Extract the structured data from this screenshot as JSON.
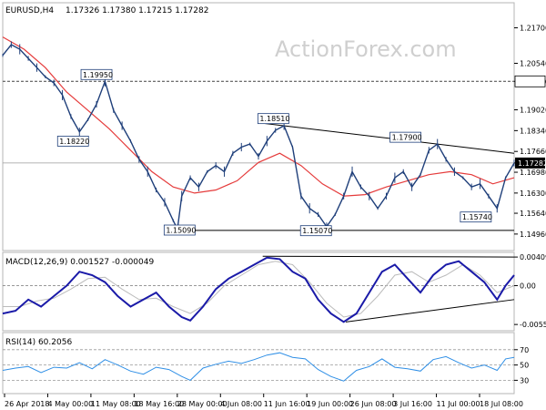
{
  "header": {
    "symbol": "EURUSD,H4",
    "ohlc": "1.17326 1.17380 1.17215 1.17282"
  },
  "watermark": "ActionForex.com",
  "colors": {
    "price": "#1f3f7a",
    "ma": "#e53b3b",
    "macd": "#1a1aa8",
    "signal": "#bbbbbb",
    "rsi": "#2f8fe6",
    "trend": "#000000",
    "current_marker": "#000000"
  },
  "chart_data": [
    {
      "type": "line",
      "name": "price",
      "x_ticks": [
        "26 Apr 2018",
        "4 May 00:00",
        "11 May 08:00",
        "18 May 16:00",
        "28 May 00:00",
        "4 Jun 08:00",
        "11 Jun 16:00",
        "19 Jun 00:00",
        "26 Jun 08:00",
        "3 Jul 16:00",
        "11 Jul 00:00",
        "18 Jul 08:00"
      ],
      "y_ticks": [
        "1.21700",
        "1.20540",
        "1.19950",
        "1.19020",
        "1.18340",
        "1.17660",
        "1.17282",
        "1.16980",
        "1.16300",
        "1.15640",
        "1.14960"
      ],
      "ylim": [
        1.1448,
        1.2246
      ],
      "horizontal_level": 1.1995,
      "current_value": 1.17282,
      "annotations": [
        {
          "label": "1.19950",
          "x": 44,
          "y": 1.1995
        },
        {
          "label": "1.18220",
          "x": 33,
          "y": 1.1822
        },
        {
          "label": "1.18510",
          "x": 127,
          "y": 1.1851
        },
        {
          "label": "1.15090",
          "x": 83,
          "y": 1.1509
        },
        {
          "label": "1.15070",
          "x": 147,
          "y": 1.1507
        },
        {
          "label": "1.17900",
          "x": 189,
          "y": 1.179
        },
        {
          "label": "1.15740",
          "x": 222,
          "y": 1.1574
        }
      ],
      "x": [
        0,
        4,
        8,
        12,
        16,
        20,
        24,
        28,
        32,
        36,
        40,
        44,
        48,
        52,
        56,
        60,
        64,
        68,
        72,
        76,
        80,
        82,
        84,
        88,
        92,
        96,
        100,
        104,
        108,
        112,
        116,
        120,
        124,
        128,
        132,
        136,
        140,
        144,
        148,
        152,
        156,
        160,
        164,
        168,
        172,
        176,
        180,
        184,
        188,
        192,
        196,
        200,
        204,
        208,
        212,
        216,
        220,
        224,
        228,
        232,
        236,
        240
      ],
      "values": [
        1.208,
        1.2115,
        1.21,
        1.207,
        1.204,
        1.201,
        1.199,
        1.195,
        1.188,
        1.183,
        1.187,
        1.192,
        1.1995,
        1.19,
        1.185,
        1.18,
        1.174,
        1.17,
        1.164,
        1.16,
        1.154,
        1.1512,
        1.162,
        1.168,
        1.165,
        1.17,
        1.172,
        1.17,
        1.176,
        1.178,
        1.179,
        1.175,
        1.18,
        1.1835,
        1.185,
        1.178,
        1.162,
        1.158,
        1.156,
        1.152,
        1.156,
        1.162,
        1.17,
        1.165,
        1.162,
        1.158,
        1.162,
        1.168,
        1.17,
        1.165,
        1.169,
        1.177,
        1.179,
        1.174,
        1.17,
        1.168,
        1.165,
        1.166,
        1.162,
        1.158,
        1.168,
        1.1728
      ],
      "series": [
        {
          "name": "MA",
          "x": [
            0,
            10,
            20,
            30,
            40,
            50,
            60,
            70,
            80,
            90,
            100,
            110,
            120,
            130,
            140,
            150,
            160,
            170,
            180,
            190,
            200,
            210,
            220,
            230,
            240
          ],
          "values": [
            1.214,
            1.21,
            1.204,
            1.196,
            1.19,
            1.184,
            1.177,
            1.17,
            1.165,
            1.163,
            1.164,
            1.167,
            1.173,
            1.176,
            1.172,
            1.166,
            1.162,
            1.1625,
            1.165,
            1.167,
            1.169,
            1.17,
            1.169,
            1.166,
            1.168
          ]
        }
      ],
      "trendlines": [
        {
          "from": {
            "x": 122,
            "y": 1.1858
          },
          "to": {
            "x": 240,
            "y": 1.176
          }
        },
        {
          "from": {
            "x": 82,
            "y": 1.1508
          },
          "to": {
            "x": 240,
            "y": 1.1508
          }
        }
      ]
    },
    {
      "type": "line",
      "name": "MACD(12,26,9)",
      "label": "MACD(12,26,9) 0.001527 -0.000049",
      "y_ticks": [
        "0.004094",
        "0.00",
        "-0.005566"
      ],
      "ylim": [
        -0.0062,
        0.0045
      ],
      "zero_level": 0.0,
      "x": [
        0,
        6,
        12,
        18,
        24,
        30,
        36,
        42,
        48,
        54,
        60,
        66,
        72,
        78,
        84,
        88,
        94,
        100,
        106,
        112,
        118,
        124,
        130,
        136,
        142,
        148,
        154,
        160,
        166,
        172,
        178,
        184,
        190,
        196,
        202,
        208,
        214,
        220,
        226,
        232,
        236,
        240
      ],
      "values": [
        -0.004,
        -0.0036,
        -0.002,
        -0.003,
        -0.0015,
        0.0,
        0.002,
        0.0015,
        0.0005,
        -0.0015,
        -0.003,
        -0.002,
        -0.001,
        -0.003,
        -0.0045,
        -0.005,
        -0.003,
        -0.0005,
        0.001,
        0.002,
        0.003,
        0.004,
        0.0038,
        0.002,
        0.001,
        -0.002,
        -0.004,
        -0.0052,
        -0.004,
        -0.001,
        0.002,
        0.003,
        0.001,
        -0.001,
        0.0015,
        0.003,
        0.0035,
        0.002,
        0.0005,
        -0.002,
        0.0,
        0.0015
      ],
      "series": [
        {
          "name": "signal",
          "x": [
            0,
            8,
            16,
            24,
            32,
            40,
            48,
            56,
            64,
            72,
            80,
            88,
            96,
            104,
            112,
            120,
            128,
            136,
            144,
            152,
            160,
            168,
            176,
            184,
            192,
            200,
            208,
            216,
            224,
            232,
            240
          ],
          "values": [
            -0.003,
            -0.003,
            -0.0022,
            -0.0018,
            -0.0005,
            0.001,
            0.0012,
            -0.0005,
            -0.002,
            -0.0018,
            -0.003,
            -0.004,
            -0.0025,
            0.0,
            0.0015,
            0.003,
            0.0035,
            0.003,
            0.0005,
            -0.0025,
            -0.0045,
            -0.004,
            -0.0015,
            0.0015,
            0.002,
            0.0005,
            0.0015,
            0.003,
            0.0015,
            -0.001,
            0.0
          ]
        }
      ],
      "trendlines": [
        {
          "from": {
            "x": 122,
            "y": 0.0042
          },
          "to": {
            "x": 240,
            "y": 0.0041
          }
        },
        {
          "from": {
            "x": 161,
            "y": -0.0052
          },
          "to": {
            "x": 240,
            "y": -0.002
          }
        }
      ]
    },
    {
      "type": "line",
      "name": "RSI(14)",
      "label": "RSI(14) 60.2056",
      "y_ticks": [
        "70",
        "50",
        "30"
      ],
      "ylim": [
        15,
        90
      ],
      "x": [
        0,
        6,
        12,
        18,
        24,
        30,
        36,
        42,
        48,
        54,
        60,
        66,
        72,
        78,
        84,
        88,
        94,
        100,
        106,
        112,
        118,
        124,
        130,
        136,
        142,
        148,
        154,
        160,
        166,
        172,
        178,
        184,
        190,
        196,
        202,
        208,
        214,
        220,
        226,
        232,
        236,
        240
      ],
      "values": [
        43,
        46,
        48,
        40,
        47,
        46,
        53,
        45,
        57,
        50,
        42,
        38,
        47,
        44,
        35,
        30,
        46,
        51,
        55,
        52,
        57,
        63,
        66,
        60,
        58,
        44,
        35,
        29,
        43,
        48,
        58,
        47,
        45,
        42,
        57,
        61,
        53,
        46,
        50,
        43,
        58,
        60
      ]
    }
  ]
}
